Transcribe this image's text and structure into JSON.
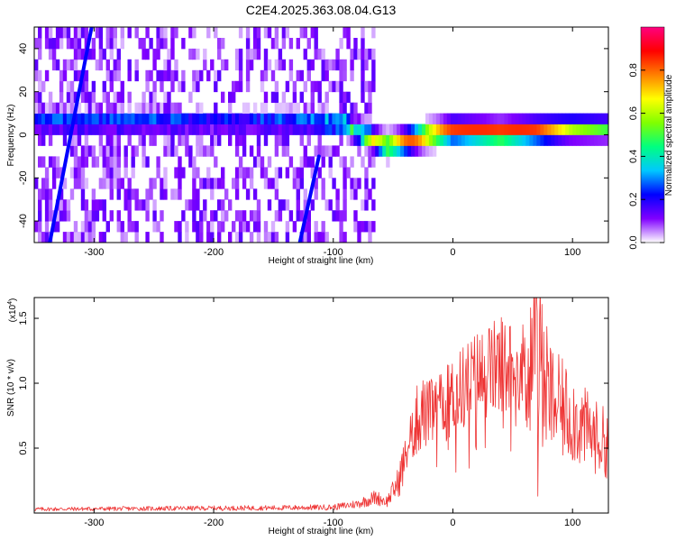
{
  "title": "C2E4.2025.363.08.04.G13",
  "chart_data": [
    {
      "type": "heatmap",
      "xlabel": "Height of straight line (km)",
      "ylabel": "Frequency (Hz)",
      "xlim": [
        -350,
        130
      ],
      "ylim": [
        -50,
        50
      ],
      "x_ticks": [
        -300,
        -200,
        -100,
        0,
        100
      ],
      "y_ticks": [
        -40,
        -20,
        0,
        20,
        40
      ],
      "colorbar": {
        "label": "Normalized spectral amplitude",
        "range": [
          0,
          1
        ],
        "ticks": [
          0.0,
          0.2,
          0.4,
          0.6,
          0.8
        ],
        "colors": [
          "#ffffff",
          "#8000ff",
          "#0000ff",
          "#00c8ff",
          "#00ff80",
          "#80ff00",
          "#ffff00",
          "#ff8000",
          "#ff0000",
          "#ff0080"
        ]
      },
      "ridge": [
        {
          "x": -350,
          "y": 6,
          "amp": 0.3
        },
        {
          "x": -310,
          "y": 6,
          "amp": 0.3
        },
        {
          "x": -270,
          "y": 6,
          "amp": 0.3
        },
        {
          "x": -200,
          "y": 6,
          "amp": 0.25
        },
        {
          "x": -120,
          "y": 6,
          "amp": 0.3
        },
        {
          "x": -90,
          "y": 5,
          "amp": 0.45
        },
        {
          "x": -75,
          "y": 0,
          "amp": 0.55
        },
        {
          "x": -55,
          "y": -5,
          "amp": 0.7
        },
        {
          "x": -40,
          "y": -3,
          "amp": 0.8
        },
        {
          "x": -20,
          "y": 0,
          "amp": 0.85
        },
        {
          "x": 0,
          "y": 2,
          "amp": 0.85
        },
        {
          "x": 40,
          "y": 1,
          "amp": 0.95
        },
        {
          "x": 70,
          "y": 2,
          "amp": 0.85
        },
        {
          "x": 100,
          "y": 3,
          "amp": 0.6
        },
        {
          "x": 130,
          "y": 3,
          "amp": 0.5
        }
      ],
      "streaks": [
        {
          "x0": -337,
          "y0": -50,
          "x1": -302,
          "y1": 50,
          "color": "#0000ff"
        },
        {
          "x0": -128,
          "y0": -50,
          "x1": -112,
          "y1": -10,
          "color": "#0000ff"
        }
      ]
    },
    {
      "type": "line",
      "xlabel": "Height of straight line (km)",
      "ylabel": "SNR (10 * v/v)",
      "y_multiplier": "(x10",
      "y_multiplier_exp": "4",
      "y_multiplier_close": ")",
      "xlim": [
        -350,
        130
      ],
      "ylim": [
        0,
        16600
      ],
      "x_ticks": [
        -300,
        -200,
        -100,
        0,
        100
      ],
      "y_ticks": [
        0.5,
        1.0,
        1.5
      ],
      "color": "#ee3333",
      "envelope": [
        [
          -350,
          300
        ],
        [
          -150,
          400
        ],
        [
          -100,
          450
        ],
        [
          -80,
          700
        ],
        [
          -65,
          1200
        ],
        [
          -55,
          900
        ],
        [
          -45,
          2500
        ],
        [
          -35,
          6000
        ],
        [
          -25,
          7500
        ],
        [
          -10,
          8000
        ],
        [
          0,
          9000
        ],
        [
          20,
          10500
        ],
        [
          40,
          11300
        ],
        [
          60,
          11000
        ],
        [
          65,
          12000
        ],
        [
          70,
          14500
        ],
        [
          75,
          11000
        ],
        [
          80,
          9000
        ],
        [
          90,
          8000
        ],
        [
          100,
          7500
        ],
        [
          110,
          6500
        ],
        [
          120,
          5800
        ],
        [
          130,
          5300
        ]
      ],
      "spikes": [
        [
          -44,
          4000
        ],
        [
          -30,
          9800
        ],
        [
          -25,
          10200
        ],
        [
          -15,
          9800
        ],
        [
          60,
          13500
        ],
        [
          66,
          15000
        ],
        [
          70,
          16600
        ],
        [
          71,
          1300
        ],
        [
          74,
          12000
        ],
        [
          77,
          11000
        ]
      ]
    }
  ]
}
